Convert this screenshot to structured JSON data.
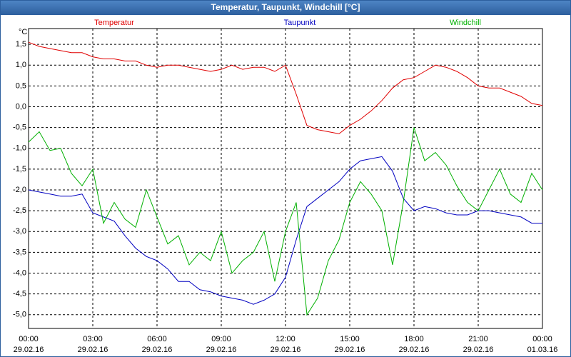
{
  "chart_data": {
    "type": "line",
    "title": "Temperatur, Taupunkt, Windchill [°C]",
    "y_label": "°C",
    "x": [
      0,
      0.5,
      1,
      1.5,
      2,
      2.5,
      3,
      3.5,
      4,
      4.5,
      5,
      5.5,
      6,
      6.5,
      7,
      7.5,
      8,
      8.5,
      9,
      9.5,
      10,
      10.5,
      11,
      11.5,
      12,
      12.5,
      13,
      13.5,
      14,
      14.5,
      15,
      15.5,
      16,
      16.5,
      17,
      17.5,
      18,
      18.5,
      19,
      19.5,
      20,
      20.5,
      21,
      21.5,
      22,
      22.5,
      23,
      23.5,
      24
    ],
    "series": [
      {
        "name": "Temperatur",
        "color": "#e00000",
        "values": [
          1.55,
          1.45,
          1.4,
          1.35,
          1.3,
          1.3,
          1.2,
          1.15,
          1.15,
          1.1,
          1.1,
          1.0,
          0.95,
          1.0,
          1.0,
          0.95,
          0.9,
          0.85,
          0.9,
          1.0,
          0.9,
          0.95,
          0.95,
          0.85,
          1.0,
          0.3,
          -0.45,
          -0.55,
          -0.6,
          -0.65,
          -0.45,
          -0.3,
          -0.1,
          0.15,
          0.45,
          0.65,
          0.7,
          0.85,
          1.0,
          0.95,
          0.85,
          0.7,
          0.5,
          0.45,
          0.45,
          0.35,
          0.25,
          0.08,
          0.03
        ]
      },
      {
        "name": "Taupunkt",
        "color": "#0000c0",
        "values": [
          -2.0,
          -2.05,
          -2.1,
          -2.15,
          -2.15,
          -2.1,
          -2.55,
          -2.65,
          -2.75,
          -3.1,
          -3.4,
          -3.6,
          -3.7,
          -3.9,
          -4.2,
          -4.2,
          -4.4,
          -4.45,
          -4.55,
          -4.6,
          -4.65,
          -4.75,
          -4.65,
          -4.5,
          -4.1,
          -3.2,
          -2.4,
          -2.2,
          -2.0,
          -1.8,
          -1.5,
          -1.3,
          -1.25,
          -1.2,
          -1.55,
          -2.2,
          -2.5,
          -2.4,
          -2.45,
          -2.55,
          -2.6,
          -2.6,
          -2.5,
          -2.5,
          -2.55,
          -2.6,
          -2.65,
          -2.8,
          -2.8
        ]
      },
      {
        "name": "Windchill",
        "color": "#00b000",
        "values": [
          -0.85,
          -0.6,
          -1.05,
          -1.0,
          -1.6,
          -1.9,
          -1.5,
          -2.8,
          -2.3,
          -2.7,
          -2.9,
          -2.0,
          -2.65,
          -3.3,
          -3.1,
          -3.8,
          -3.5,
          -3.7,
          -3.0,
          -4.0,
          -3.7,
          -3.5,
          -3.0,
          -4.2,
          -3.0,
          -2.3,
          -5.0,
          -4.6,
          -3.7,
          -3.2,
          -2.3,
          -1.8,
          -2.1,
          -2.5,
          -3.8,
          -2.3,
          -0.5,
          -1.3,
          -1.1,
          -1.4,
          -1.9,
          -2.3,
          -2.5,
          -2.0,
          -1.5,
          -2.1,
          -2.3,
          -1.6,
          -2.0
        ]
      }
    ],
    "xlim": [
      0,
      24
    ],
    "xticks": [
      {
        "value": 0,
        "label": "00:00"
      },
      {
        "value": 3,
        "label": "03:00"
      },
      {
        "value": 6,
        "label": "06:00"
      },
      {
        "value": 9,
        "label": "09:00"
      },
      {
        "value": 12,
        "label": "12:00"
      },
      {
        "value": 15,
        "label": "15:00"
      },
      {
        "value": 18,
        "label": "18:00"
      },
      {
        "value": 21,
        "label": "21:00"
      },
      {
        "value": 24,
        "label": "00:00"
      }
    ],
    "xtick_dates": [
      "29.02.16",
      "29.02.16",
      "29.02.16",
      "29.02.16",
      "29.02.16",
      "29.02.16",
      "29.02.16",
      "29.02.16",
      "01.03.16"
    ],
    "ylim": [
      -5.33,
      1.88
    ],
    "yticks": [
      {
        "value": 1.5,
        "label": "1,5"
      },
      {
        "value": 1.0,
        "label": "1,0"
      },
      {
        "value": 0.5,
        "label": "0,5"
      },
      {
        "value": 0,
        "label": "0,0"
      },
      {
        "value": -0.5,
        "label": "-0,5"
      },
      {
        "value": -1.0,
        "label": "-1,0"
      },
      {
        "value": -1.5,
        "label": "-1,5"
      },
      {
        "value": -2.0,
        "label": "-2,0"
      },
      {
        "value": -2.5,
        "label": "-2,5"
      },
      {
        "value": -3.0,
        "label": "-3,0"
      },
      {
        "value": -3.5,
        "label": "-3,5"
      },
      {
        "value": -4.0,
        "label": "-4,0"
      },
      {
        "value": -4.5,
        "label": "-4,5"
      },
      {
        "value": -5.0,
        "label": "-5,0"
      }
    ],
    "grid": true
  }
}
